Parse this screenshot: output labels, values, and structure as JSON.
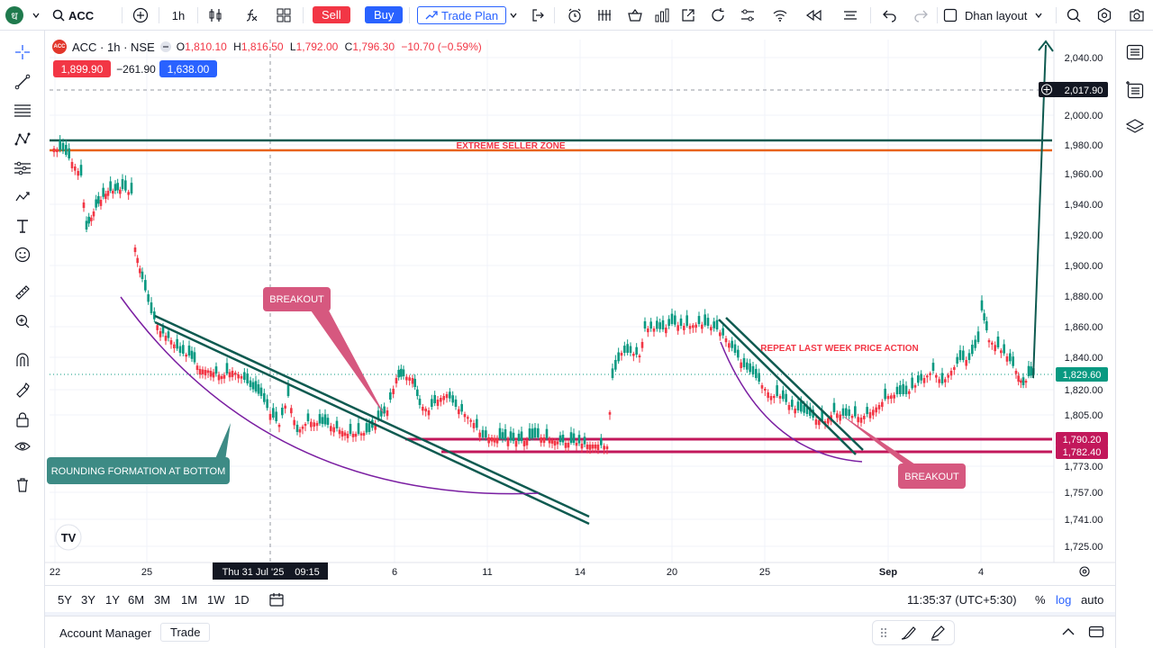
{
  "toolbar": {
    "symbol": "ACC",
    "interval": "1h",
    "sell_label": "Sell",
    "buy_label": "Buy",
    "trade_plan_label": "Trade Plan",
    "layout_label": "Dhan layout",
    "logo_glyph": "ध"
  },
  "legend": {
    "title": "ACC · 1h · NSE",
    "o_label": "O",
    "o_value": "1,810.10",
    "h_label": "H",
    "h_value": "1,816.50",
    "l_label": "L",
    "l_value": "1,792.00",
    "c_label": "C",
    "c_value": "1,796.30",
    "change": "−10.70 (−0.59%)",
    "sell_price": "1,899.90",
    "spread": "−261.90",
    "buy_price": "1,638.00"
  },
  "colors": {
    "up": "#089981",
    "down": "#f23645",
    "teal": "#0e5a50",
    "orange": "#e8621c",
    "magenta": "#c2185b",
    "purple": "#7b1fa2",
    "annotation_pink": "#d6587f",
    "annotation_teal": "#3d8b85"
  },
  "chart_data": {
    "type": "candlestick",
    "symbol": "ACC",
    "timeframe": "1h",
    "y_ticks": [
      "2,040.00",
      "2,000.00",
      "1,980.00",
      "1,960.00",
      "1,940.00",
      "1,920.00",
      "1,900.00",
      "1,880.00",
      "1,860.00",
      "1,840.00",
      "1,820.00",
      "1,805.00",
      "1,773.00",
      "1,757.00",
      "1,741.00",
      "1,725.00"
    ],
    "x_ticks": [
      "22",
      "25",
      "6",
      "11",
      "14",
      "20",
      "25",
      "Sep",
      "4"
    ],
    "crosshair_date": "Thu 31 Jul '25",
    "crosshair_time": "09:15",
    "price_labels": {
      "crosshair": "2,017.90",
      "last": "1,829.60",
      "support_upper": "1,790.20",
      "support_lower": "1,782.40"
    },
    "annotations": {
      "seller_zone": "EXTREME SELLER ZONE",
      "breakout_1": "BREAKOUT",
      "breakout_2": "BREAKOUT",
      "rounding": "ROUNDING FORMATION AT BOTTOM",
      "repeat": "REPEAT LAST WEEK PRICE ACTION"
    },
    "watermark": "TV"
  },
  "bottom": {
    "ranges": [
      "5Y",
      "3Y",
      "1Y",
      "6M",
      "3M",
      "1M",
      "1W",
      "1D"
    ],
    "clock": "11:35:37 (UTC+5:30)",
    "percent": "%",
    "log": "log",
    "auto": "auto"
  },
  "footer": {
    "account_manager": "Account Manager",
    "trade": "Trade"
  }
}
